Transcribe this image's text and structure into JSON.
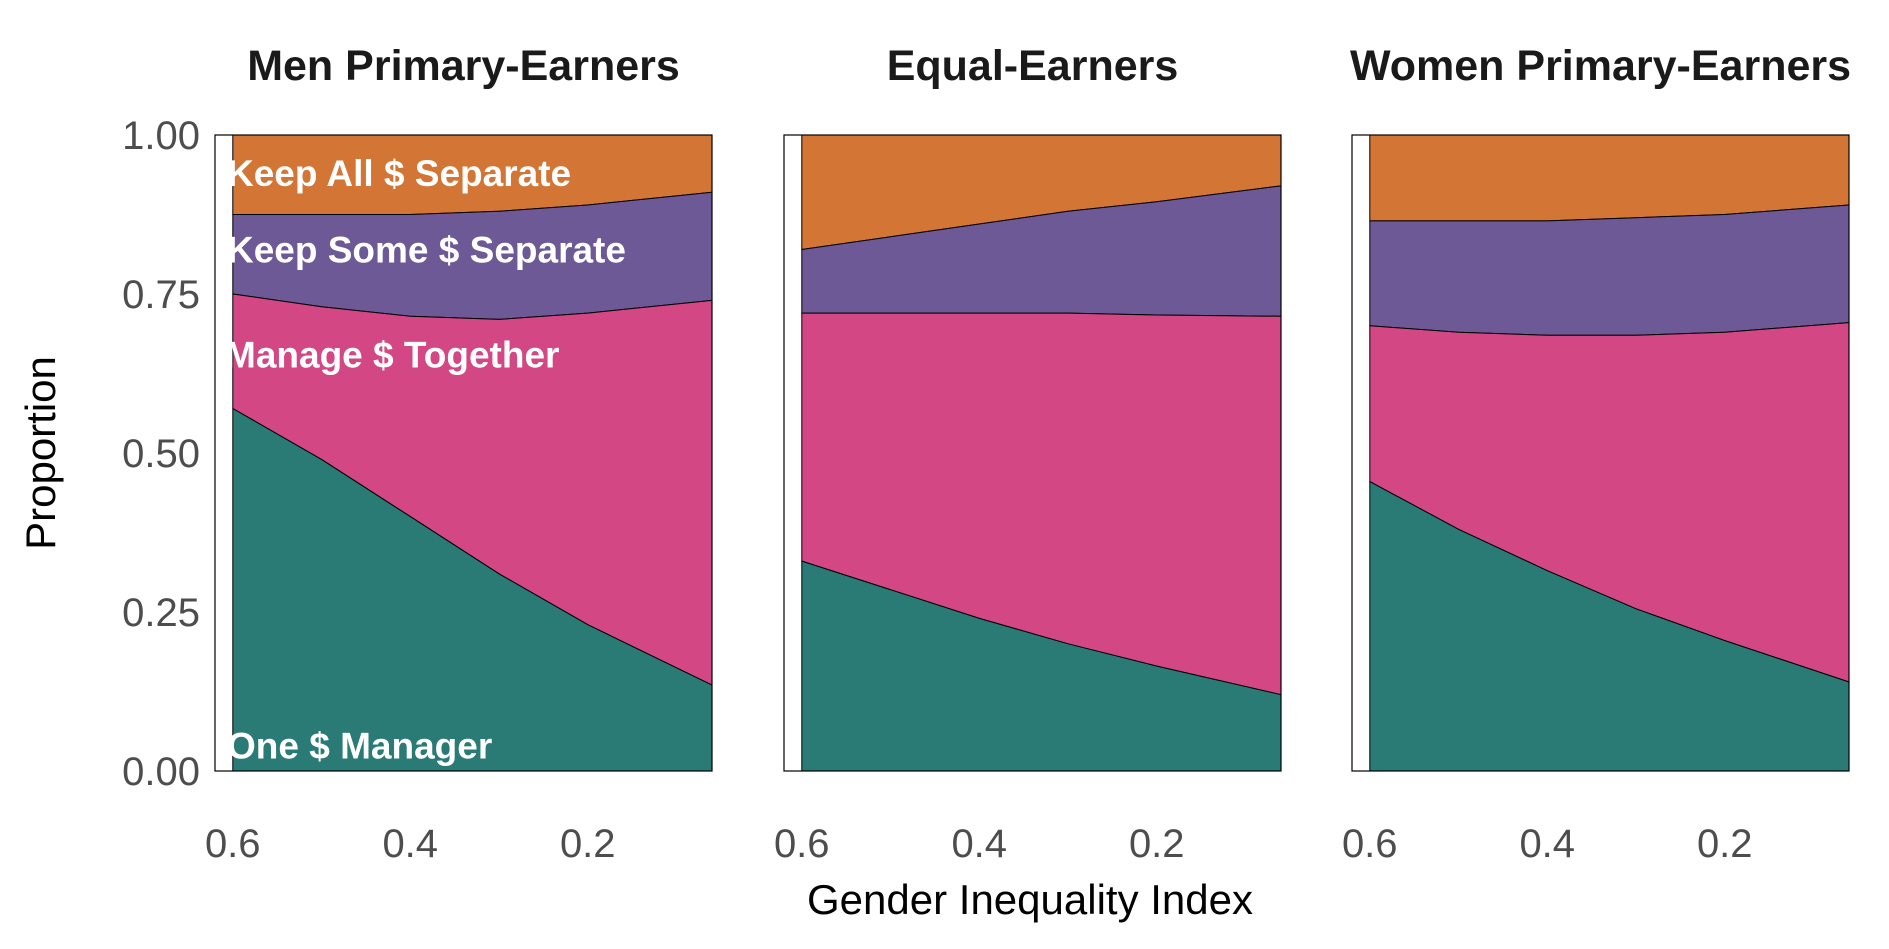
{
  "chart_data": {
    "type": "area",
    "stacked": true,
    "xlabel": "Gender Inequality Index",
    "ylabel": "Proportion",
    "x_reversed": true,
    "xlim": [
      0.62,
      0.06
    ],
    "ylim": [
      0,
      1
    ],
    "x_ticks": [
      0.6,
      0.4,
      0.2
    ],
    "x_tick_labels": [
      "0.6",
      "0.4",
      "0.2"
    ],
    "y_ticks": [
      0,
      0.25,
      0.5,
      0.75,
      1.0
    ],
    "y_tick_labels": [
      "0.00",
      "0.25",
      "0.50",
      "0.75",
      "1.00"
    ],
    "grid": false,
    "legend": "none (direct labels in first panel)",
    "colors": {
      "one_manager": "#2A7B76",
      "manage_together": "#D24784",
      "keep_some_separate": "#6C5996",
      "keep_all_separate": "#D27535",
      "outline": "#000000"
    },
    "series_labels": {
      "one_manager": "One $ Manager",
      "manage_together": "Manage $ Together",
      "keep_some_separate": "Keep Some $ Separate",
      "keep_all_separate": "Keep All $ Separate"
    },
    "x": [
      0.6,
      0.5,
      0.4,
      0.3,
      0.2,
      0.06
    ],
    "panels": [
      {
        "title": "Men Primary-Earners",
        "show_labels": true,
        "cumulative": {
          "one_manager": [
            0.57,
            0.49,
            0.4,
            0.31,
            0.23,
            0.135
          ],
          "manage_together": [
            0.75,
            0.73,
            0.715,
            0.71,
            0.72,
            0.74
          ],
          "keep_some_separate": [
            0.875,
            0.875,
            0.875,
            0.88,
            0.89,
            0.91
          ],
          "keep_all_separate": [
            1,
            1,
            1,
            1,
            1,
            1
          ]
        }
      },
      {
        "title": "Equal-Earners",
        "show_labels": false,
        "cumulative": {
          "one_manager": [
            0.33,
            0.285,
            0.24,
            0.2,
            0.165,
            0.12
          ],
          "manage_together": [
            0.72,
            0.72,
            0.72,
            0.72,
            0.717,
            0.715
          ],
          "keep_some_separate": [
            0.82,
            0.84,
            0.86,
            0.88,
            0.895,
            0.92
          ],
          "keep_all_separate": [
            1,
            1,
            1,
            1,
            1,
            1
          ]
        }
      },
      {
        "title": "Women Primary-Earners",
        "show_labels": false,
        "cumulative": {
          "one_manager": [
            0.455,
            0.38,
            0.315,
            0.255,
            0.205,
            0.14
          ],
          "manage_together": [
            0.7,
            0.69,
            0.685,
            0.685,
            0.69,
            0.705
          ],
          "keep_some_separate": [
            0.865,
            0.865,
            0.865,
            0.87,
            0.875,
            0.89
          ],
          "keep_all_separate": [
            1,
            1,
            1,
            1,
            1,
            1
          ]
        }
      }
    ]
  }
}
